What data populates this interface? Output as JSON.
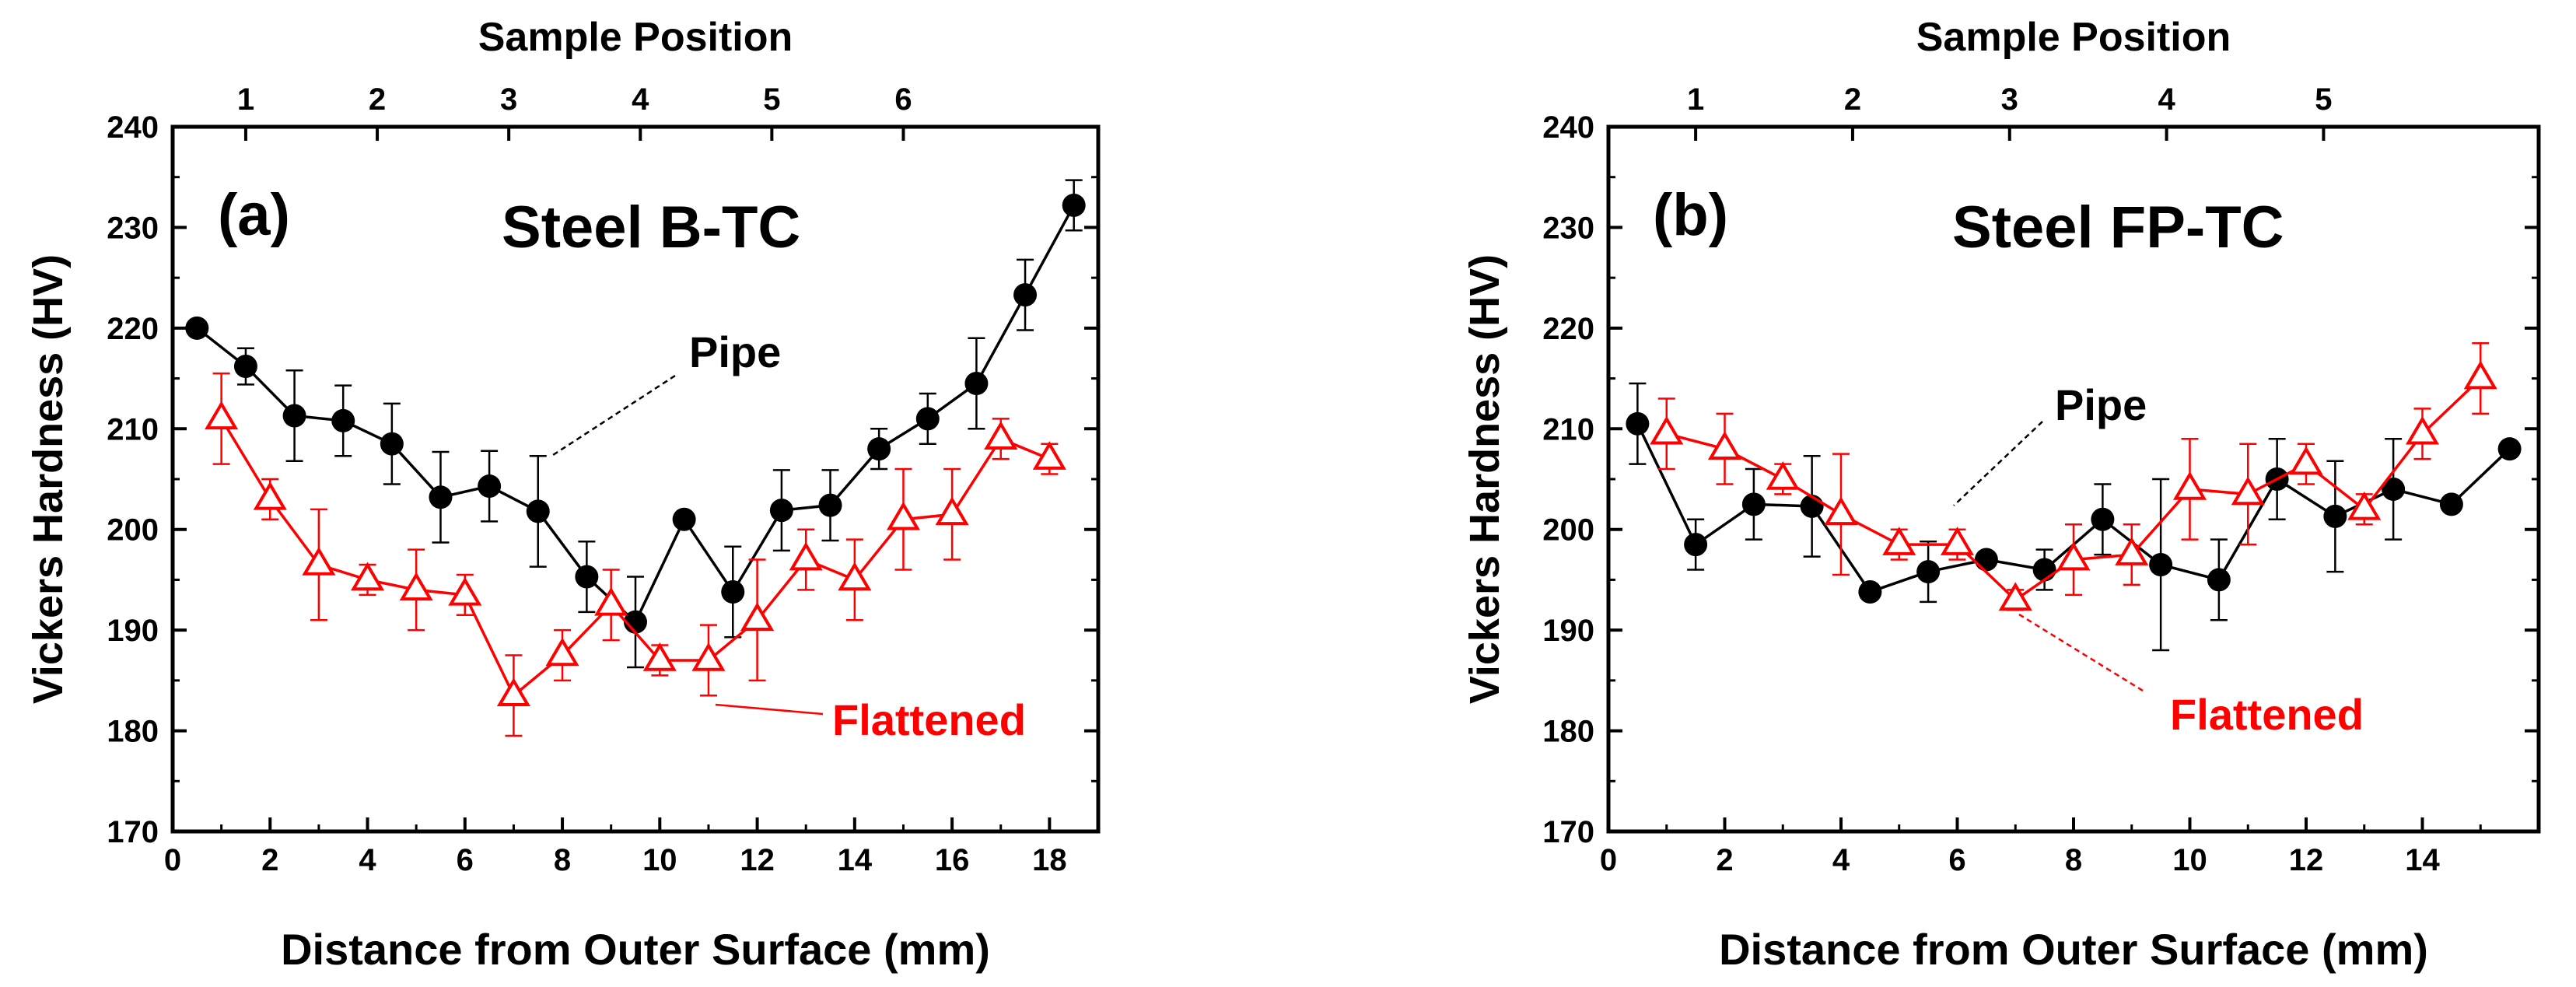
{
  "colors": {
    "pipe": "#000000",
    "flattened": "#ff0000",
    "axis": "#000000",
    "background": "#ffffff"
  },
  "chart_data": [
    {
      "type": "line",
      "panel_label": "(a)",
      "title": "Steel B-TC",
      "xlabel": "Distance from Outer Surface (mm)",
      "ylabel": "Vickers Hardness (HV)",
      "top_xlabel": "Sample Position",
      "xlim": [
        0,
        19
      ],
      "ylim": [
        170,
        240
      ],
      "xticks": [
        0,
        2,
        4,
        6,
        8,
        10,
        12,
        14,
        16,
        18
      ],
      "yticks": [
        170,
        180,
        190,
        200,
        210,
        220,
        230,
        240
      ],
      "top_ticks": [
        {
          "label": "1",
          "x": 1.5
        },
        {
          "label": "2",
          "x": 4.2
        },
        {
          "label": "3",
          "x": 6.9
        },
        {
          "label": "4",
          "x": 9.6
        },
        {
          "label": "5",
          "x": 12.3
        },
        {
          "label": "6",
          "x": 15.0
        }
      ],
      "series": [
        {
          "name": "Pipe",
          "marker": "circle",
          "color": "#000000",
          "x": [
            0.5,
            1.5,
            2.5,
            3.5,
            4.5,
            5.5,
            6.5,
            7.5,
            8.5,
            9.5,
            10.5,
            11.5,
            12.5,
            13.5,
            14.5,
            15.5,
            16.5,
            17.5,
            18.5
          ],
          "y": [
            220,
            216.2,
            211.3,
            210.8,
            208.5,
            203.2,
            204.3,
            201.8,
            195.3,
            190.8,
            201,
            193.8,
            201.9,
            202.4,
            208,
            211,
            214.5,
            223.3,
            232.2
          ],
          "err": [
            0,
            1.8,
            4.5,
            3.5,
            4.0,
            4.5,
            3.5,
            5.5,
            3.5,
            4.5,
            0,
            4.5,
            4.0,
            3.5,
            2.0,
            2.5,
            4.5,
            3.5,
            2.5
          ]
        },
        {
          "name": "Flattened",
          "marker": "triangle",
          "color": "#ff0000",
          "x": [
            1,
            2,
            3,
            4,
            5,
            6,
            7,
            8,
            9,
            10,
            11,
            12,
            13,
            14,
            15,
            16,
            17,
            18
          ],
          "y": [
            211,
            203,
            196.5,
            195,
            194,
            193.5,
            183.5,
            187.5,
            192.5,
            187,
            187,
            191,
            197,
            195,
            201,
            201.5,
            209,
            207
          ],
          "err": [
            4.5,
            2.0,
            5.5,
            1.5,
            4.0,
            2.0,
            4.0,
            2.5,
            3.5,
            1.5,
            3.5,
            6.0,
            3.0,
            4.0,
            5.0,
            4.5,
            2.0,
            1.5
          ]
        }
      ],
      "annotations": [
        {
          "text": "Pipe",
          "color": "#000000"
        },
        {
          "text": "Flattened",
          "color": "#ff0000"
        }
      ]
    },
    {
      "type": "line",
      "panel_label": "(b)",
      "title": "Steel FP-TC",
      "xlabel": "Distance from Outer Surface (mm)",
      "ylabel": "Vickers Hardness (HV)",
      "top_xlabel": "Sample Position",
      "xlim": [
        0,
        16
      ],
      "ylim": [
        170,
        240
      ],
      "xticks": [
        0,
        2,
        4,
        6,
        8,
        10,
        12,
        14
      ],
      "yticks": [
        170,
        180,
        190,
        200,
        210,
        220,
        230,
        240
      ],
      "top_ticks": [
        {
          "label": "1",
          "x": 1.5
        },
        {
          "label": "2",
          "x": 4.2
        },
        {
          "label": "3",
          "x": 6.9
        },
        {
          "label": "4",
          "x": 9.6
        },
        {
          "label": "5",
          "x": 12.3
        }
      ],
      "series": [
        {
          "name": "Pipe",
          "marker": "circle",
          "color": "#000000",
          "x": [
            0.5,
            1.5,
            2.5,
            3.5,
            4.5,
            5.5,
            6.5,
            7.5,
            8.5,
            9.5,
            10.5,
            11.5,
            12.5,
            13.5,
            14.5,
            15.5
          ],
          "y": [
            210.5,
            198.5,
            202.5,
            202.3,
            193.8,
            195.8,
            197,
            196,
            201,
            196.5,
            195,
            205,
            201.3,
            204,
            202.5,
            208
          ],
          "err": [
            4.0,
            2.5,
            3.5,
            5.0,
            0,
            3.0,
            0,
            2.0,
            3.5,
            8.5,
            4.0,
            4.0,
            5.5,
            5.0,
            0,
            0
          ]
        },
        {
          "name": "Flattened",
          "marker": "triangle",
          "color": "#ff0000",
          "x": [
            1,
            2,
            3,
            4,
            5,
            6,
            7,
            8,
            9,
            10,
            11,
            12,
            13,
            14,
            15
          ],
          "y": [
            209.5,
            208,
            205,
            201.5,
            198.5,
            198.5,
            193,
            197,
            197.5,
            204,
            203.5,
            206.5,
            202,
            209.5,
            215
          ],
          "err": [
            3.5,
            3.5,
            1.5,
            6.0,
            1.5,
            1.5,
            1.0,
            3.5,
            3.0,
            5.0,
            5.0,
            2.0,
            1.5,
            2.5,
            3.5
          ]
        }
      ],
      "annotations": [
        {
          "text": "Pipe",
          "color": "#000000"
        },
        {
          "text": "Flattened",
          "color": "#ff0000"
        }
      ]
    }
  ]
}
